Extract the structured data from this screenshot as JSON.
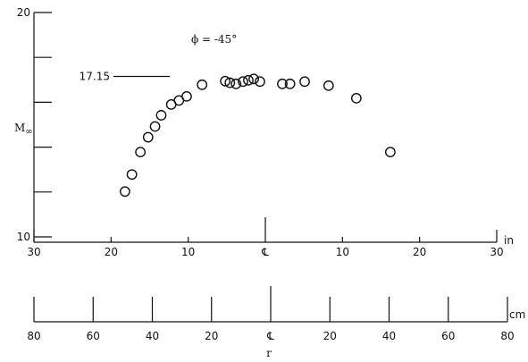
{
  "chart_data": {
    "type": "scatter",
    "title": "",
    "ylabel": "M∞",
    "ylim": [
      10,
      20
    ],
    "y_ticks": [
      10,
      12,
      14,
      16,
      18,
      20
    ],
    "y_tick_labels": [
      "10",
      "",
      "",
      "",
      "",
      "20"
    ],
    "annotation": "ϕ = -45°",
    "reference_line": {
      "label": "17.15",
      "y": 17.15
    },
    "xlim_in": [
      -30,
      30
    ],
    "x_ticks_in": [
      -30,
      -20,
      -10,
      0,
      10,
      20,
      30
    ],
    "x_tick_labels_in": [
      "30",
      "20",
      "10",
      "℄",
      "10",
      "20",
      "30"
    ],
    "x_unit_in": "in",
    "x_ticks_cm": [
      -80,
      -60,
      -40,
      -20,
      0,
      20,
      40,
      60,
      80
    ],
    "x_tick_labels_cm": [
      "80",
      "60",
      "40",
      "20",
      "℄",
      "20",
      "40",
      "60",
      "80"
    ],
    "x_unit_cm": "cm",
    "xlabel": "r",
    "series": [
      {
        "x": [
          -18.2,
          -17.3,
          -16.2,
          -15.2,
          -14.3,
          -13.5,
          -12.2,
          -11.2,
          -10.2,
          -8.2,
          -5.2,
          -4.6,
          -3.8,
          -2.9,
          -2.2,
          -1.5,
          -0.7,
          2.2,
          3.2,
          5.1,
          8.2,
          11.8,
          16.2
        ],
        "y": [
          12.02,
          12.78,
          13.78,
          14.44,
          14.92,
          15.42,
          15.9,
          16.08,
          16.26,
          16.78,
          16.94,
          16.87,
          16.82,
          16.92,
          16.98,
          17.04,
          16.92,
          16.82,
          16.82,
          16.92,
          16.74,
          16.18,
          13.78
        ]
      }
    ]
  }
}
